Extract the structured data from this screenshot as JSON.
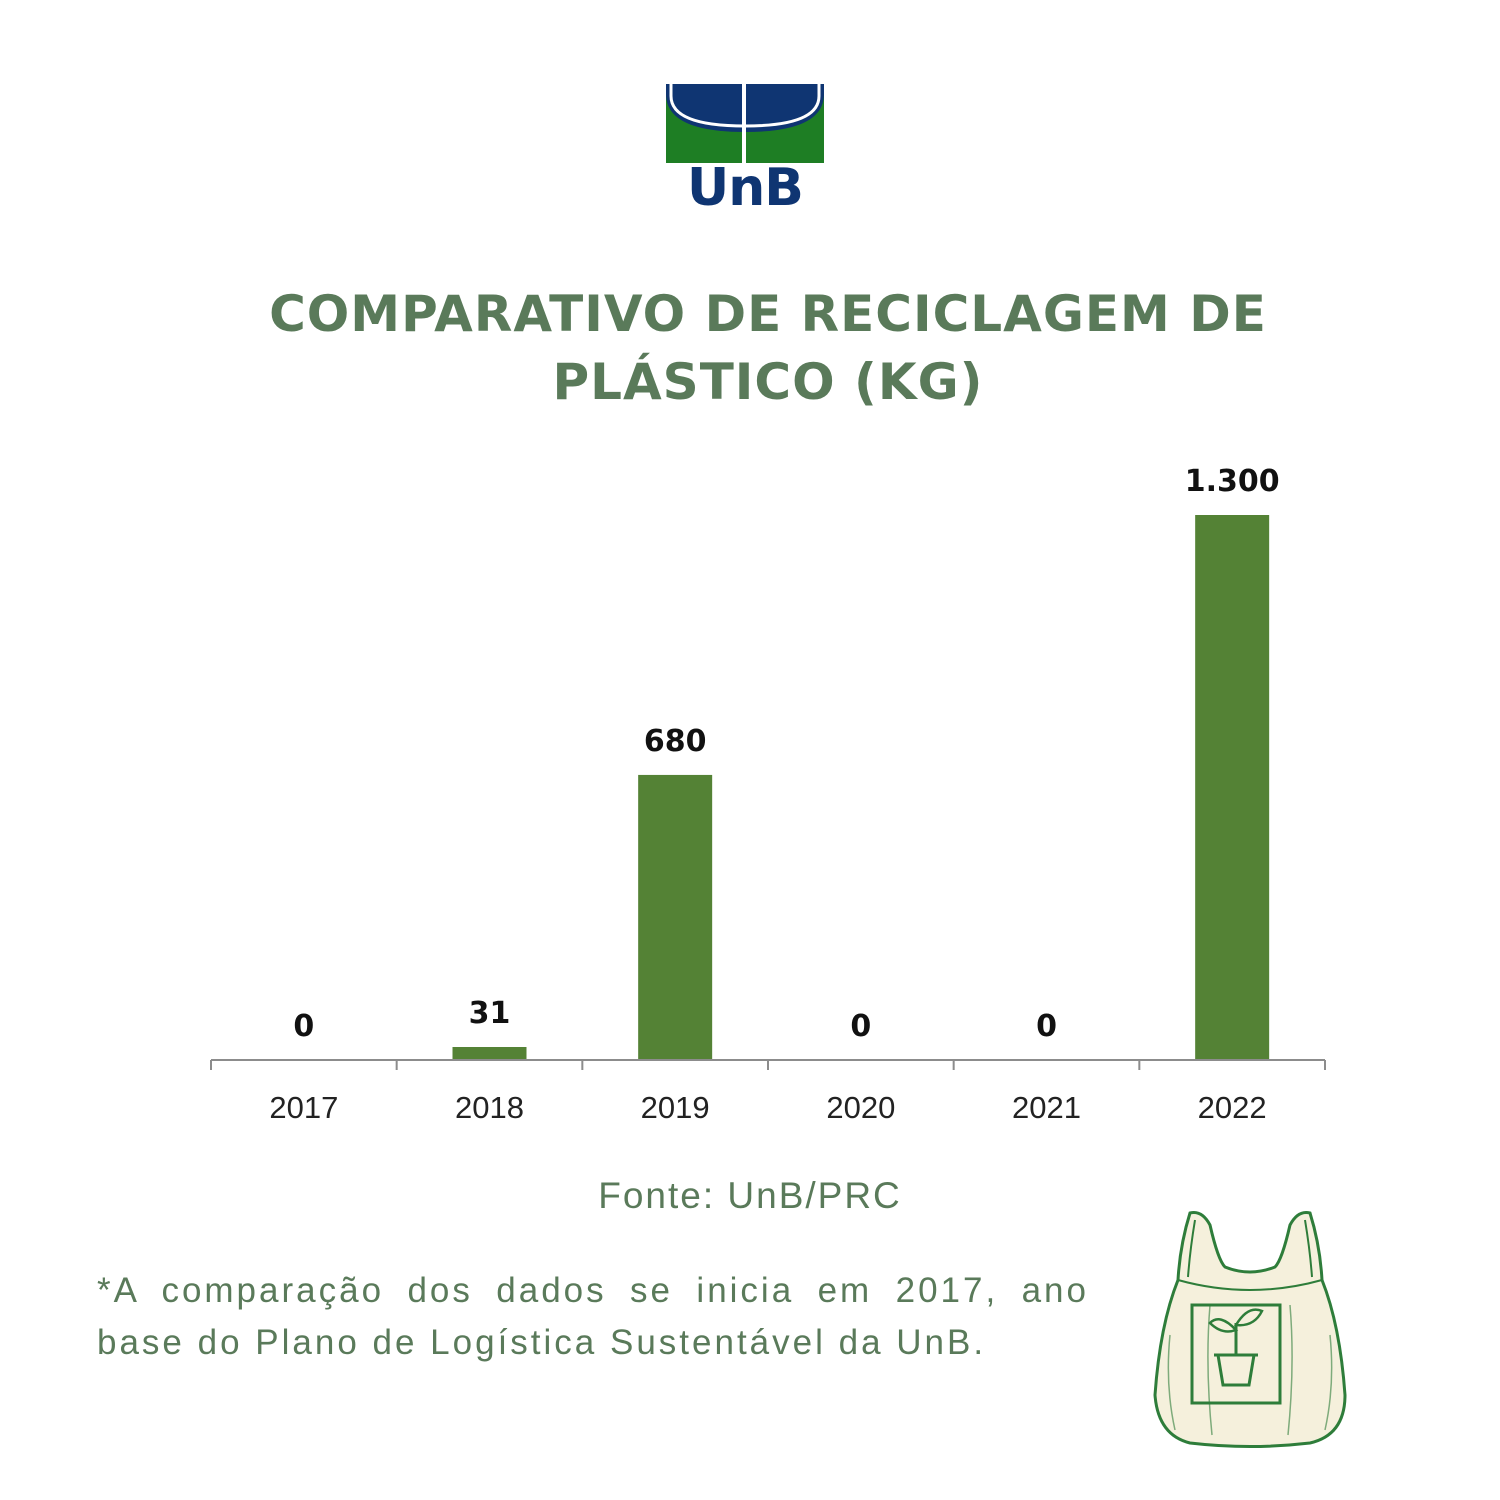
{
  "header": {
    "logo_text": "UnB",
    "title": "COMPARATIVO DE RECICLAGEM DE PLÁSTICO (KG)"
  },
  "colors": {
    "bar": "#548235",
    "title": "#5a7a5a",
    "logo_blue": "#0f3572",
    "logo_green": "#1e7e24"
  },
  "chart_data": {
    "type": "bar",
    "title": "COMPARATIVO DE RECICLAGEM DE PLÁSTICO (KG)",
    "categories": [
      "2017",
      "2018",
      "2019",
      "2020",
      "2021",
      "2022"
    ],
    "values": [
      0,
      31,
      680,
      0,
      0,
      1300
    ],
    "data_labels": [
      "0",
      "31",
      "680",
      "0",
      "0",
      "1.300"
    ],
    "xlabel": "",
    "ylabel": "",
    "ylim": [
      0,
      1300
    ],
    "grid": false,
    "legend": "none"
  },
  "footer": {
    "source": "Fonte: UnB/PRC",
    "note": "*A comparação dos dados se inicia em 2017, ano base do Plano de Logística Sustentável da UnB."
  },
  "icons": {
    "logo": "unb-logo",
    "bag": "plastic-bag-plant-icon"
  }
}
